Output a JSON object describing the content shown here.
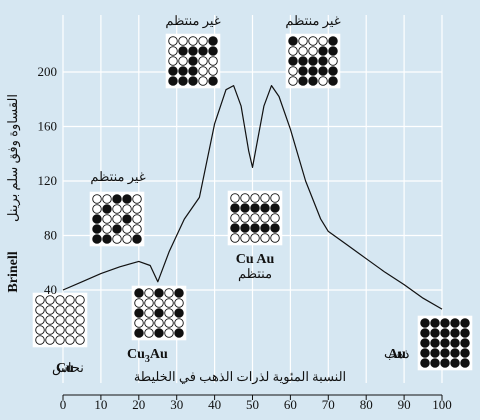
{
  "chart_data": {
    "type": "line",
    "xlim": [
      0,
      100
    ],
    "ylim": [
      40,
      200
    ],
    "xticks": [
      0,
      10,
      20,
      30,
      40,
      50,
      60,
      70,
      80,
      90,
      100
    ],
    "yticks": [
      40,
      80,
      120,
      160,
      200
    ],
    "xlabel": "النسبة المئوية لذرات الذهب في الخليطة",
    "ylabel_bold": "Brinell",
    "ylabel": "القساوة وفق سلم برينل",
    "grid": true,
    "series": [
      {
        "x": [
          0,
          5,
          10,
          15,
          20,
          23,
          25,
          28,
          32,
          36,
          40,
          43,
          45,
          47,
          49,
          50,
          51,
          53,
          55,
          57,
          60,
          64,
          68,
          70,
          75,
          80,
          85,
          90,
          95,
          100
        ],
        "y": [
          40,
          46,
          52,
          57,
          61,
          58,
          46,
          68,
          92,
          108,
          162,
          187,
          190,
          175,
          142,
          130,
          145,
          175,
          190,
          182,
          158,
          120,
          92,
          83,
          73,
          63,
          53,
          44,
          34,
          26
        ]
      }
    ],
    "annotations": {
      "disordered_1": "غير منتظم",
      "disordered_2": "غير منتظم",
      "disordered_3": "غير منتظم",
      "ordered": "منتظم",
      "cu_label": "Cu",
      "cu_name": "نحاس",
      "au_label": "Au",
      "au_name": "ذهب",
      "cu3au": "Cu",
      "cu3au_sub": "3",
      "cu3au_tail": "Au",
      "cuau": "Cu Au"
    }
  }
}
